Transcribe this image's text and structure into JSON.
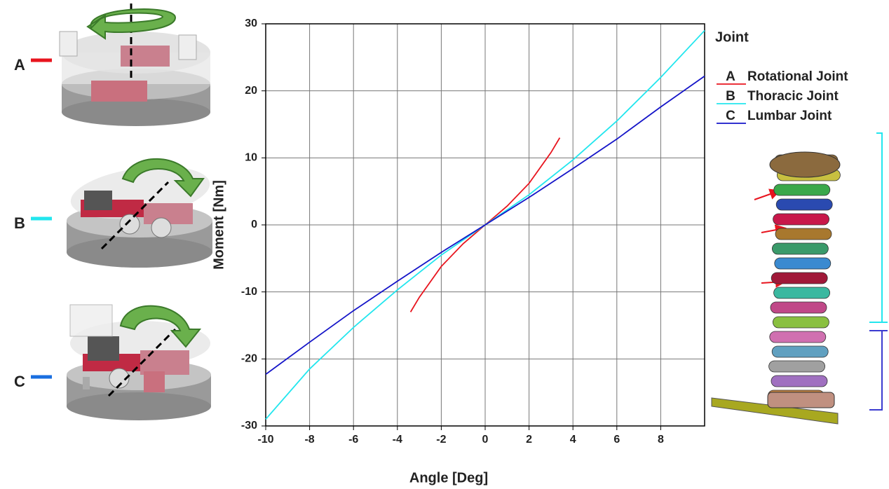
{
  "chart_data": {
    "type": "line",
    "x_label": "Angle [Deg]",
    "y_label": "Moment [Nm]",
    "legend_title": "Joint",
    "xlim": [
      -10,
      10
    ],
    "xticks": [
      -10,
      -8,
      -6,
      -4,
      -2,
      0,
      2,
      4,
      6,
      8
    ],
    "ylim": [
      -30,
      30
    ],
    "yticks": [
      -30,
      -20,
      -10,
      0,
      10,
      20,
      30
    ],
    "grid": true,
    "series": [
      {
        "letter": "A",
        "name": "Rotational Joint",
        "color": "#e8141e",
        "x": [
          -3.4,
          -3,
          -2,
          -1,
          0,
          1,
          2,
          3,
          3.4
        ],
        "values": [
          -13,
          -10.8,
          -6.2,
          -2.8,
          0,
          2.8,
          6.2,
          10.8,
          13
        ]
      },
      {
        "letter": "B",
        "name": "Thoracic Joint",
        "color": "#22e6ee",
        "x": [
          -10,
          -8,
          -6,
          -4,
          -2,
          0,
          2,
          4,
          6,
          8,
          10
        ],
        "values": [
          -29,
          -21.5,
          -15.3,
          -9.7,
          -4.5,
          0,
          4.5,
          9.7,
          15.5,
          22,
          29
        ]
      },
      {
        "letter": "C",
        "name": "Lumbar Joint",
        "color": "#1414c8",
        "x": [
          -10,
          -8,
          -6,
          -4,
          -2,
          0,
          2,
          4,
          6,
          8,
          10
        ],
        "values": [
          -22.3,
          -17.5,
          -12.8,
          -8.4,
          -4.1,
          0,
          4.1,
          8.4,
          12.8,
          17.6,
          22.2
        ]
      }
    ],
    "panels": [
      {
        "label": "A",
        "color": "#e8141e"
      },
      {
        "label": "B",
        "color": "#22e6ee"
      },
      {
        "label": "C",
        "color": "#1a6fe0"
      }
    ]
  }
}
